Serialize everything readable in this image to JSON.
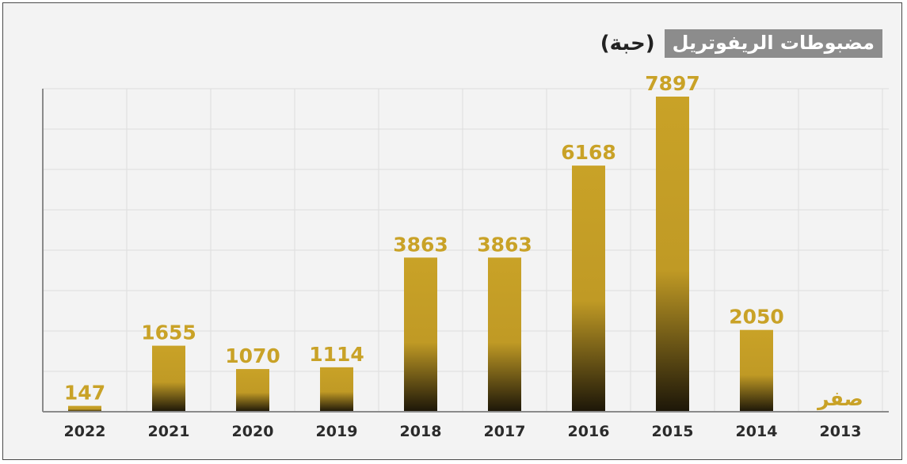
{
  "chart_data": {
    "type": "bar",
    "title": "مضبوطات الريفوتريل",
    "unit": "(حبة)",
    "categories": [
      "2022",
      "2021",
      "2020",
      "2019",
      "2018",
      "2017",
      "2016",
      "2015",
      "2014",
      "2013"
    ],
    "values": [
      147,
      1655,
      1070,
      1114,
      3863,
      3863,
      6168,
      7897,
      2050,
      0
    ],
    "value_labels": [
      "147",
      "1655",
      "1070",
      "1114",
      "3863",
      "3863",
      "6168",
      "7897",
      "2050",
      "صفر"
    ],
    "ylim": [
      0,
      8000
    ],
    "grid": true,
    "colors": {
      "bar_top": "#c9a227",
      "bar_bottom": "#1c1608",
      "label": "#c9a227"
    }
  }
}
